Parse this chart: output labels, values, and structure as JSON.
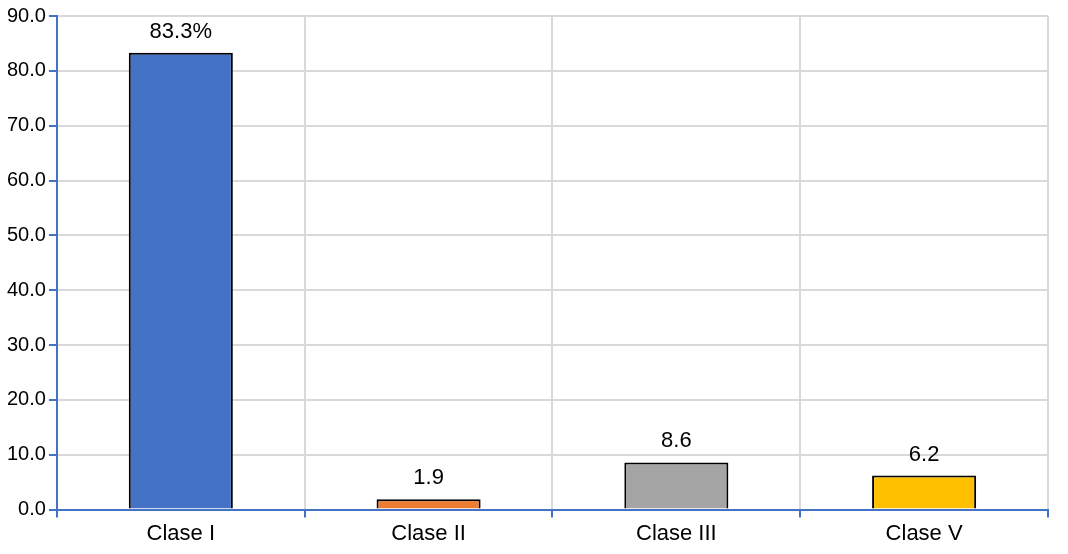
{
  "chart_data": {
    "type": "bar",
    "categories": [
      "Clase I",
      "Clase II",
      "Clase III",
      "Clase V"
    ],
    "values": [
      83.3,
      1.9,
      8.6,
      6.2
    ],
    "colors": [
      "#4472c4",
      "#ed7d31",
      "#a5a5a5",
      "#ffc000"
    ],
    "value_labels": [
      "83.3%",
      "1.9",
      "8.6",
      "6.2"
    ],
    "ylim": [
      0,
      90
    ],
    "yticks": [
      {
        "value": 0,
        "label": "0.0"
      },
      {
        "value": 10,
        "label": "10.0"
      },
      {
        "value": 20,
        "label": "20.0"
      },
      {
        "value": 30,
        "label": "30.0"
      },
      {
        "value": 40,
        "label": "40.0"
      },
      {
        "value": 50,
        "label": "50.0"
      },
      {
        "value": 60,
        "label": "60.0"
      },
      {
        "value": 70,
        "label": "70.0"
      },
      {
        "value": 80,
        "label": "80.0"
      },
      {
        "value": 90,
        "label": "90.0"
      }
    ],
    "grid": true,
    "legend": false
  }
}
